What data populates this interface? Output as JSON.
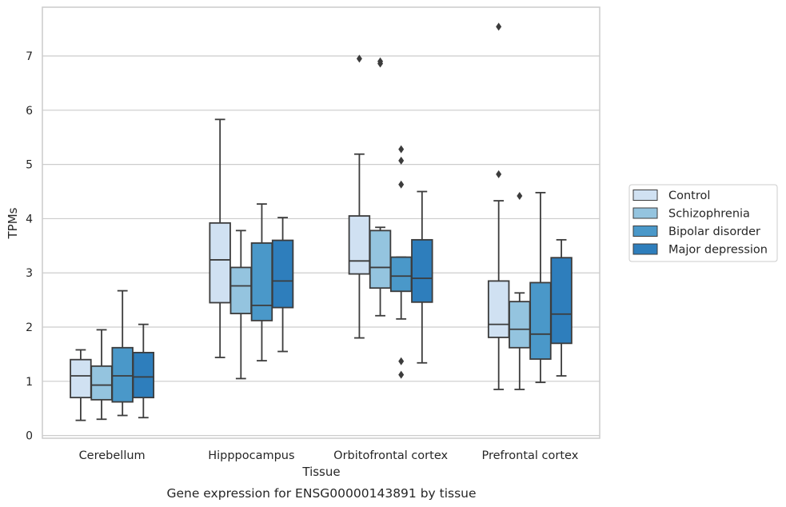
{
  "chart_data": {
    "type": "boxplot",
    "title": "Gene expression for ENSG00000143891 by tissue",
    "xlabel": "Tissue",
    "ylabel": "TPMs",
    "ylim": [
      -0.05,
      7.9
    ],
    "yticks": [
      0,
      1,
      2,
      3,
      4,
      5,
      6,
      7
    ],
    "grid": "horizontal",
    "legend_position": "right",
    "categories": [
      "Cerebellum",
      "Hipppocampus",
      "Orbitofrontal cortex",
      "Prefrontal cortex"
    ],
    "series": [
      {
        "name": "Control",
        "color": "#d0e1f2",
        "boxes": [
          {
            "whislo": 0.28,
            "q1": 0.7,
            "med": 1.1,
            "q3": 1.4,
            "whishi": 1.58,
            "fliers": []
          },
          {
            "whislo": 1.44,
            "q1": 2.45,
            "med": 3.24,
            "q3": 3.92,
            "whishi": 5.83,
            "fliers": []
          },
          {
            "whislo": 1.8,
            "q1": 2.98,
            "med": 3.22,
            "q3": 4.05,
            "whishi": 5.19,
            "fliers": [
              6.95
            ]
          },
          {
            "whislo": 0.85,
            "q1": 1.81,
            "med": 2.05,
            "q3": 2.85,
            "whishi": 4.33,
            "fliers": [
              4.82,
              7.54
            ]
          }
        ]
      },
      {
        "name": "Schizophrenia",
        "color": "#94c4df",
        "boxes": [
          {
            "whislo": 0.3,
            "q1": 0.66,
            "med": 0.93,
            "q3": 1.28,
            "whishi": 1.95,
            "fliers": []
          },
          {
            "whislo": 1.05,
            "q1": 2.25,
            "med": 2.76,
            "q3": 3.1,
            "whishi": 3.78,
            "fliers": []
          },
          {
            "whislo": 2.21,
            "q1": 2.72,
            "med": 3.1,
            "q3": 3.78,
            "whishi": 3.84,
            "fliers": [
              6.86,
              6.9
            ]
          },
          {
            "whislo": 0.85,
            "q1": 1.62,
            "med": 1.96,
            "q3": 2.47,
            "whishi": 2.63,
            "fliers": [
              4.42
            ]
          }
        ]
      },
      {
        "name": "Bipolar disorder",
        "color": "#4a98c9",
        "boxes": [
          {
            "whislo": 0.37,
            "q1": 0.62,
            "med": 1.1,
            "q3": 1.62,
            "whishi": 2.67,
            "fliers": []
          },
          {
            "whislo": 1.38,
            "q1": 2.12,
            "med": 2.4,
            "q3": 3.55,
            "whishi": 4.27,
            "fliers": []
          },
          {
            "whislo": 2.15,
            "q1": 2.66,
            "med": 2.94,
            "q3": 3.29,
            "whishi": 3.29,
            "fliers": [
              1.12,
              1.37,
              4.63,
              5.07,
              5.28
            ]
          },
          {
            "whislo": 0.98,
            "q1": 1.41,
            "med": 1.87,
            "q3": 2.82,
            "whishi": 4.48,
            "fliers": []
          }
        ]
      },
      {
        "name": "Major depression",
        "color": "#2e7ebc",
        "boxes": [
          {
            "whislo": 0.33,
            "q1": 0.7,
            "med": 1.08,
            "q3": 1.53,
            "whishi": 2.05,
            "fliers": []
          },
          {
            "whislo": 1.55,
            "q1": 2.36,
            "med": 2.85,
            "q3": 3.6,
            "whishi": 4.02,
            "fliers": []
          },
          {
            "whislo": 1.34,
            "q1": 2.46,
            "med": 2.9,
            "q3": 3.61,
            "whishi": 4.5,
            "fliers": []
          },
          {
            "whislo": 1.1,
            "q1": 1.7,
            "med": 2.24,
            "q3": 3.28,
            "whishi": 3.61,
            "fliers": []
          }
        ]
      }
    ]
  }
}
